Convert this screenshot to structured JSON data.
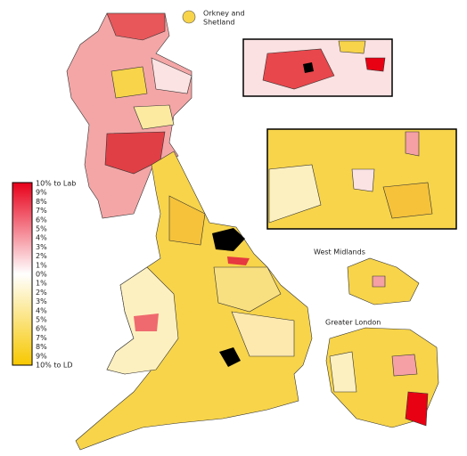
{
  "orkney_label": [
    "Orkney and",
    "Shetland"
  ],
  "west_midlands_label": "West Midlands",
  "greater_london_label": "Greater London",
  "legend": {
    "labels": [
      "10% to Lab",
      "9%",
      "8%",
      "7%",
      "6%",
      "5%",
      "4%",
      "3%",
      "2%",
      "1%",
      "0%",
      "1%",
      "2%",
      "3%",
      "4%",
      "5%",
      "6%",
      "7%",
      "8%",
      "9%",
      "10% to LD"
    ]
  }
}
